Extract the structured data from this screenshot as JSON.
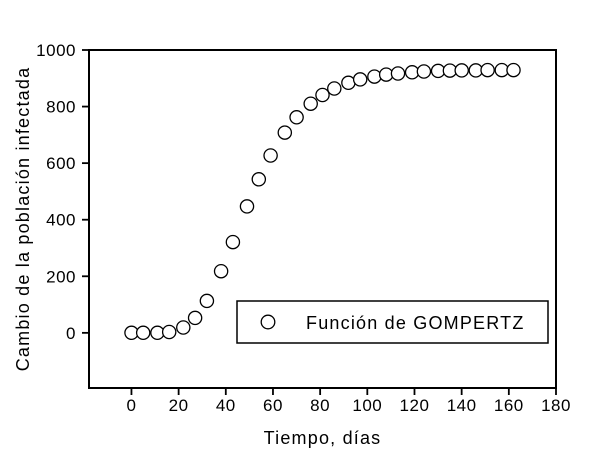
{
  "window": {
    "background": "#ffffff"
  },
  "chart_data": {
    "type": "scatter",
    "title": "",
    "xlabel": "Tiempo, días",
    "ylabel": "Cambio de la población infectada",
    "xlim": [
      -18,
      180
    ],
    "ylim": [
      -195,
      1000
    ],
    "xticks": [
      0,
      20,
      40,
      60,
      80,
      100,
      120,
      140,
      160,
      180
    ],
    "yticks": [
      0,
      200,
      400,
      600,
      800,
      1000
    ],
    "grid": false,
    "frame": "full-box",
    "legend": {
      "label": "Función de GOMPERTZ",
      "marker": "open-circle-icon",
      "position": "inside-lower-right"
    },
    "colors": {
      "axis": "#000000",
      "text": "#000000",
      "marker_stroke": "#000000",
      "marker_fill": "#ffffff",
      "background": "#ffffff"
    },
    "series": [
      {
        "name": "Función de GOMPERTZ",
        "marker": "open-circle",
        "points": [
          [
            0,
            0
          ],
          [
            5,
            0
          ],
          [
            11,
            0
          ],
          [
            16,
            3
          ],
          [
            22,
            19
          ],
          [
            27,
            53
          ],
          [
            32,
            113
          ],
          [
            38,
            218
          ],
          [
            43,
            321
          ],
          [
            49,
            447
          ],
          [
            54,
            543
          ],
          [
            59,
            627
          ],
          [
            65,
            708
          ],
          [
            70,
            762
          ],
          [
            76,
            810
          ],
          [
            81,
            841
          ],
          [
            86,
            864
          ],
          [
            92,
            884
          ],
          [
            97,
            896
          ],
          [
            103,
            906
          ],
          [
            108,
            913
          ],
          [
            113,
            917
          ],
          [
            119,
            921
          ],
          [
            124,
            924
          ],
          [
            130,
            926
          ],
          [
            135,
            927
          ],
          [
            140,
            928
          ],
          [
            146,
            928
          ],
          [
            151,
            929
          ],
          [
            157,
            929
          ],
          [
            162,
            929
          ]
        ]
      }
    ]
  }
}
